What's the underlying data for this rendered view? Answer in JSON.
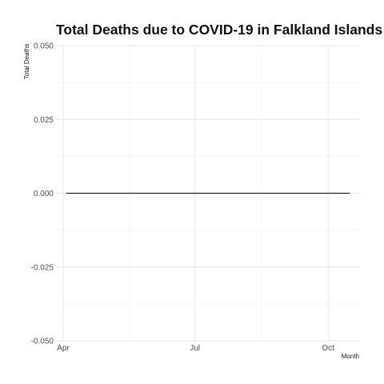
{
  "chart_data": {
    "type": "line",
    "title": "Total Deaths due to COVID-19 in Falkland Islands",
    "xlabel": "Month",
    "ylabel": "Total Deaths",
    "x_ticks": [
      "Apr",
      "Jul",
      "Oct"
    ],
    "y_ticks": [
      "0.050",
      "0.025",
      "0.000",
      "-0.025",
      "-0.050"
    ],
    "ylim": [
      -0.05,
      0.05
    ],
    "xlim": [
      "2020-03-27",
      "2020-10-23"
    ],
    "grid": true,
    "series": [
      {
        "color": "#000000",
        "x": [
          "2020-04-03",
          "2020-10-16"
        ],
        "values": [
          0,
          0
        ]
      }
    ]
  }
}
